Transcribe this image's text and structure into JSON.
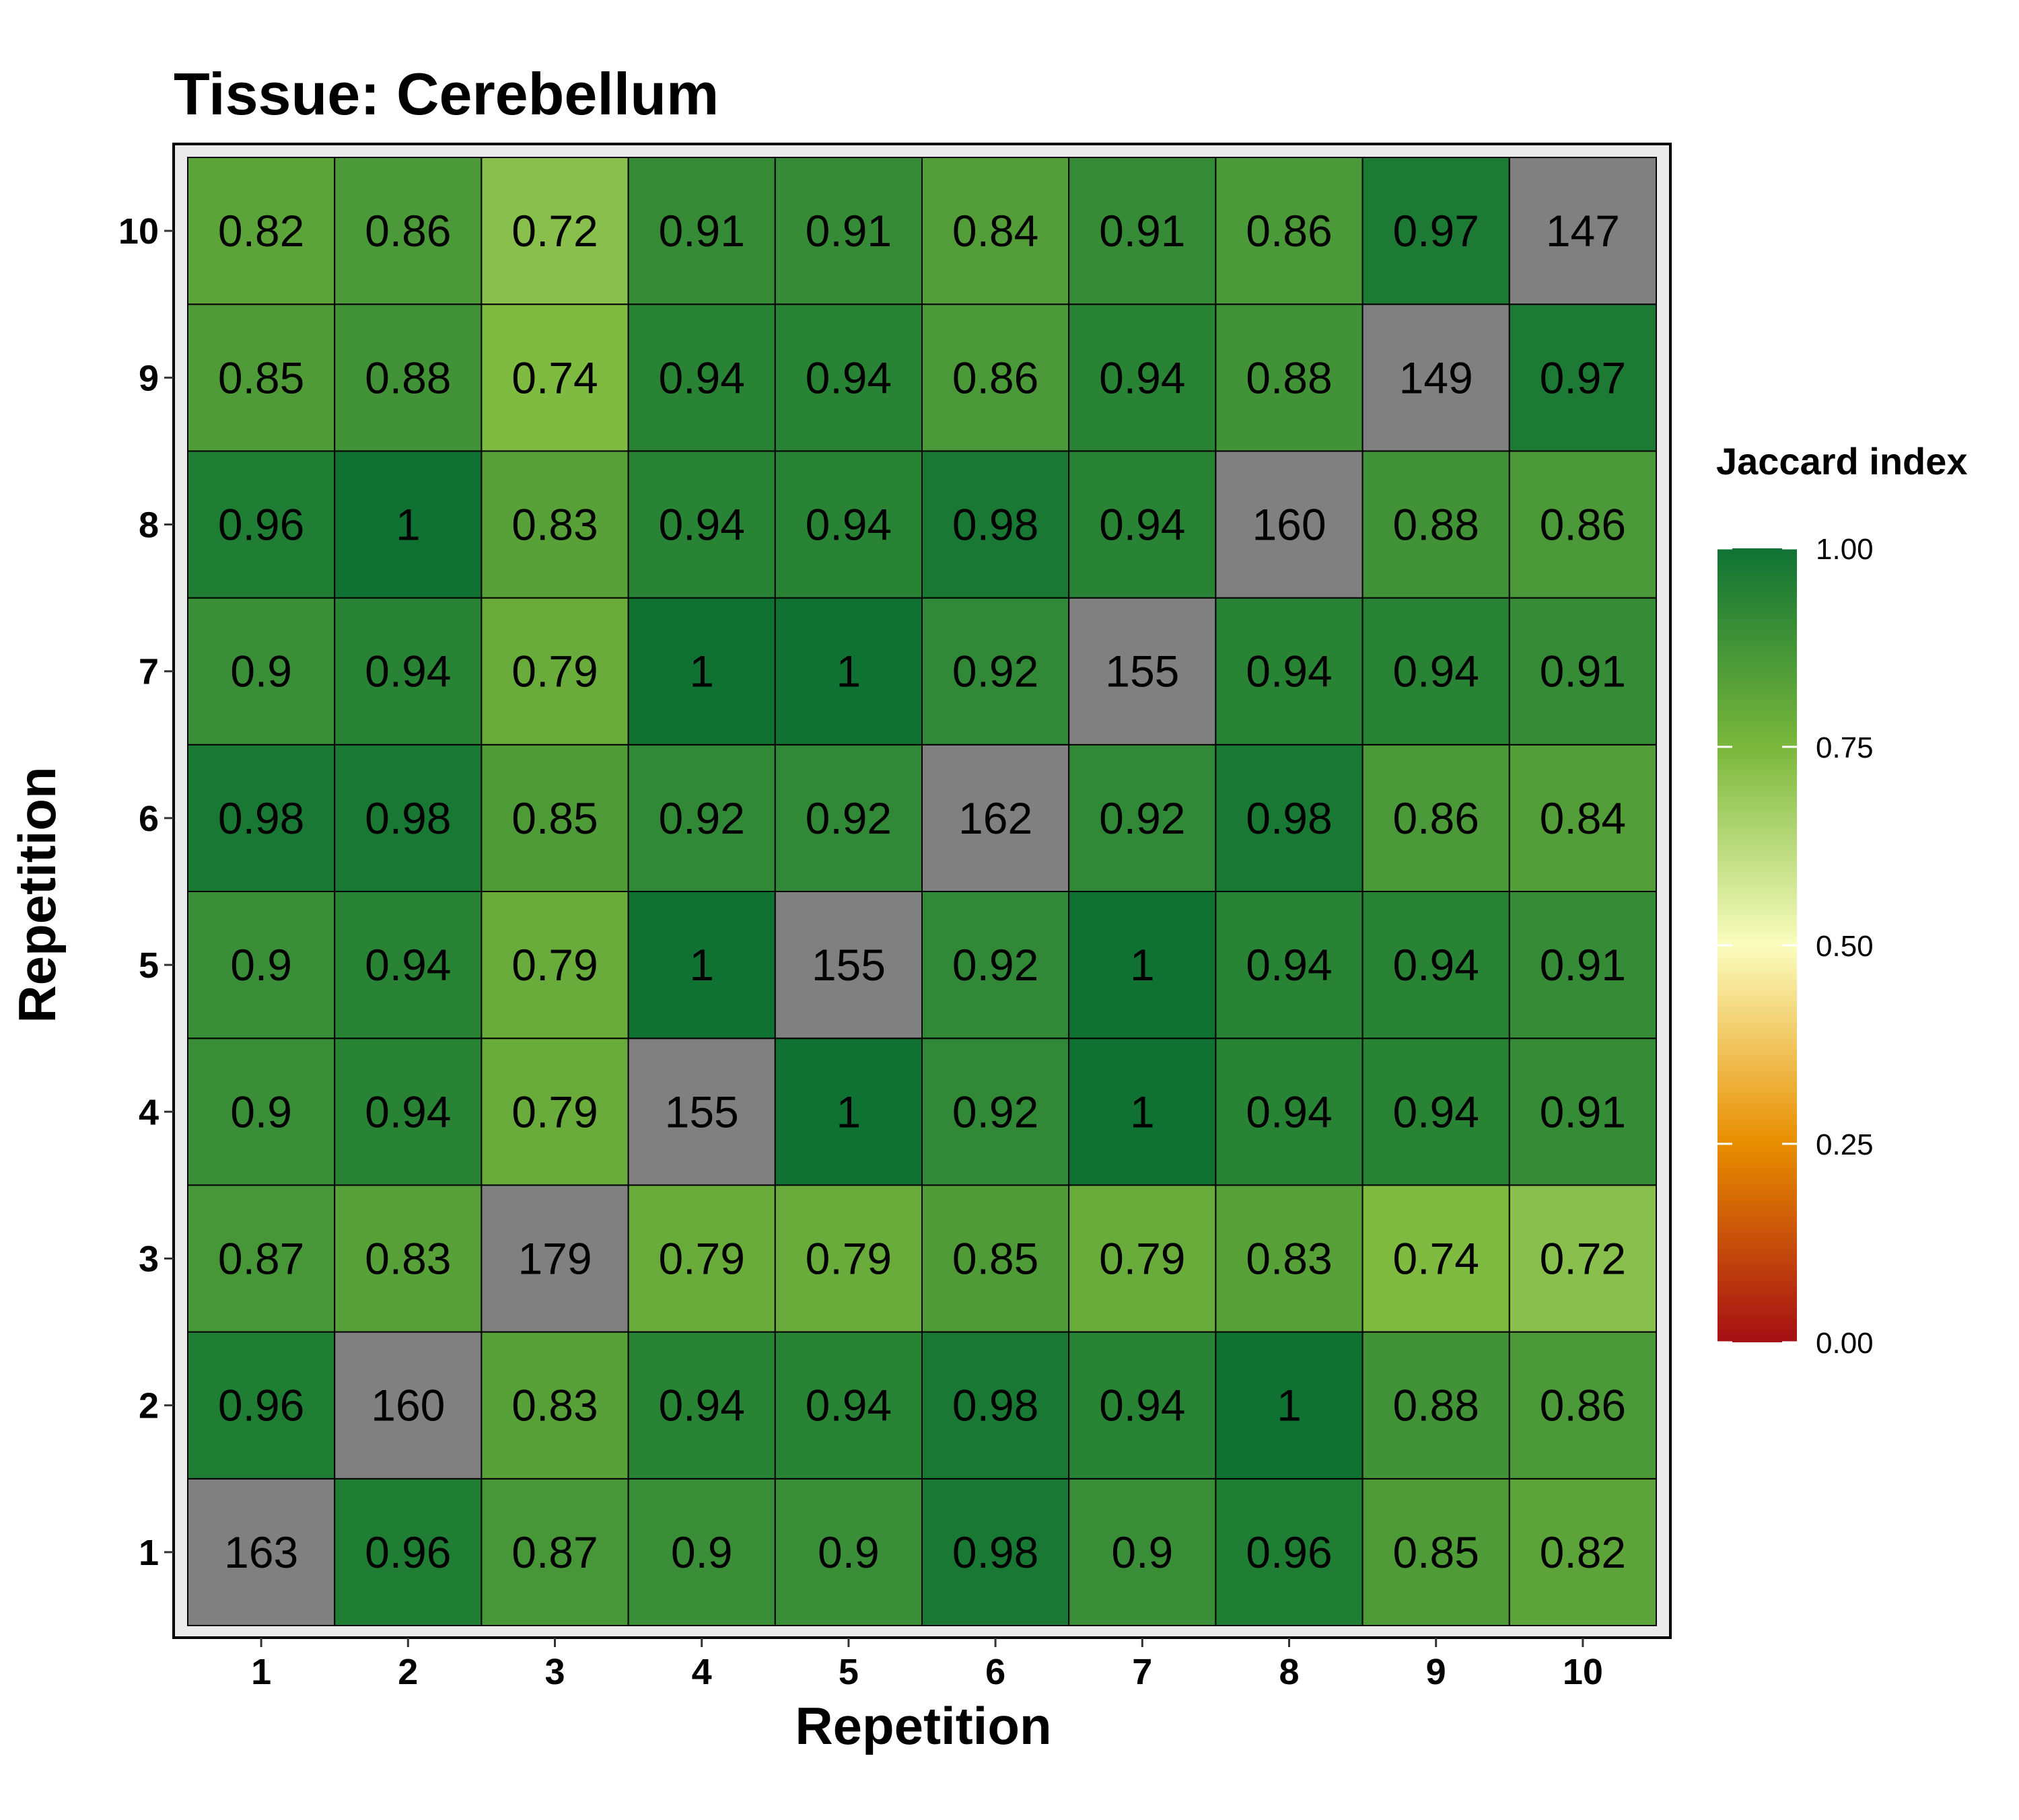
{
  "chart_data": {
    "type": "heatmap",
    "title": "Tissue: Cerebellum",
    "xlabel": "Repetition",
    "ylabel": "Repetition",
    "x_categories": [
      "1",
      "2",
      "3",
      "4",
      "5",
      "6",
      "7",
      "8",
      "9",
      "10"
    ],
    "y_categories": [
      "1",
      "2",
      "3",
      "4",
      "5",
      "6",
      "7",
      "8",
      "9",
      "10"
    ],
    "rows_bottom_to_top": [
      [
        "163",
        "0.96",
        "0.87",
        "0.9",
        "0.9",
        "0.98",
        "0.9",
        "0.96",
        "0.85",
        "0.82"
      ],
      [
        "0.96",
        "160",
        "0.83",
        "0.94",
        "0.94",
        "0.98",
        "0.94",
        "1",
        "0.88",
        "0.86"
      ],
      [
        "0.87",
        "0.83",
        "179",
        "0.79",
        "0.79",
        "0.85",
        "0.79",
        "0.83",
        "0.74",
        "0.72"
      ],
      [
        "0.9",
        "0.94",
        "0.79",
        "155",
        "1",
        "0.92",
        "1",
        "0.94",
        "0.94",
        "0.91"
      ],
      [
        "0.9",
        "0.94",
        "0.79",
        "1",
        "155",
        "0.92",
        "1",
        "0.94",
        "0.94",
        "0.91"
      ],
      [
        "0.98",
        "0.98",
        "0.85",
        "0.92",
        "0.92",
        "162",
        "0.92",
        "0.98",
        "0.86",
        "0.84"
      ],
      [
        "0.9",
        "0.94",
        "0.79",
        "1",
        "1",
        "0.92",
        "155",
        "0.94",
        "0.94",
        "0.91"
      ],
      [
        "0.96",
        "1",
        "0.83",
        "0.94",
        "0.94",
        "0.98",
        "0.94",
        "160",
        "0.88",
        "0.86"
      ],
      [
        "0.85",
        "0.88",
        "0.74",
        "0.94",
        "0.94",
        "0.86",
        "0.94",
        "0.88",
        "149",
        "0.97"
      ],
      [
        "0.82",
        "0.86",
        "0.72",
        "0.91",
        "0.91",
        "0.84",
        "0.91",
        "0.86",
        "0.97",
        "147"
      ]
    ],
    "diagonal_color": "#808080",
    "legend": {
      "title": "Jaccard index",
      "position": "right",
      "ticks": [
        "0.00",
        "0.25",
        "0.50",
        "0.75",
        "1.00"
      ],
      "range": [
        0,
        1
      ],
      "colors": [
        "#a50f15",
        "#e88e00",
        "#fafdbe",
        "#7ab73c",
        "#0f7233"
      ]
    },
    "grid": false
  }
}
